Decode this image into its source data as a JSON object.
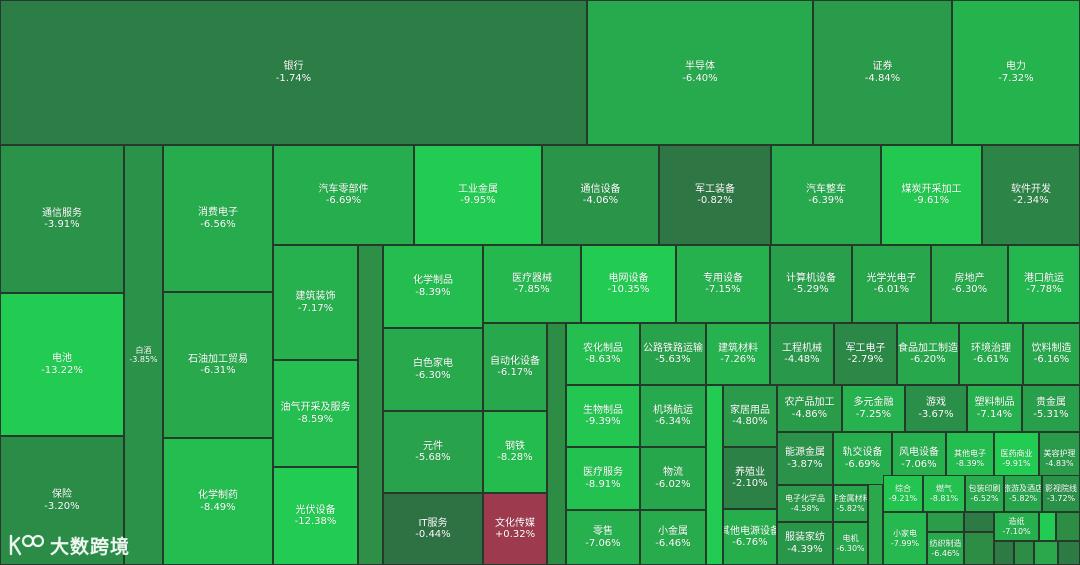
{
  "watermark": {
    "text": "大数跨境",
    "icon": "kobo-logo-icon"
  },
  "colors": {
    "deep_down": "#22cc52",
    "mid_down": "#2e9a49",
    "slight_down": "#2f6e43",
    "up": "#9e3a4e"
  },
  "chart_data": {
    "type": "heatmap",
    "subtype": "treemap",
    "value_unit": "%",
    "tiles": [
      {
        "name": "银行",
        "change": "-1.74%"
      },
      {
        "name": "半导体",
        "change": "-6.40%"
      },
      {
        "name": "证券",
        "change": "-4.84%"
      },
      {
        "name": "电力",
        "change": "-7.32%"
      },
      {
        "name": "通信服务",
        "change": "-3.91%"
      },
      {
        "name": "电池",
        "change": "-13.22%"
      },
      {
        "name": "保险",
        "change": "-3.20%"
      },
      {
        "name": "白酒",
        "change": "-3.85%"
      },
      {
        "name": "消费电子",
        "change": "-6.56%"
      },
      {
        "name": "石油加工贸易",
        "change": "-6.31%"
      },
      {
        "name": "化学制药",
        "change": "-8.49%"
      },
      {
        "name": "汽车零部件",
        "change": "-6.69%"
      },
      {
        "name": "工业金属",
        "change": "-9.95%"
      },
      {
        "name": "通信设备",
        "change": "-4.06%"
      },
      {
        "name": "军工装备",
        "change": "-0.82%"
      },
      {
        "name": "汽车整车",
        "change": "-6.39%"
      },
      {
        "name": "煤炭开采加工",
        "change": "-9.61%"
      },
      {
        "name": "软件开发",
        "change": "-2.34%"
      },
      {
        "name": "建筑装饰",
        "change": "-7.17%"
      },
      {
        "name": "油气开采及服务",
        "change": "-8.59%"
      },
      {
        "name": "光伏设备",
        "change": "-12.38%"
      },
      {
        "name": "化学制品",
        "change": "-8.39%"
      },
      {
        "name": "白色家电",
        "change": "-6.30%"
      },
      {
        "name": "元件",
        "change": "-5.68%"
      },
      {
        "name": "IT服务",
        "change": "-0.44%"
      },
      {
        "name": "医疗器械",
        "change": "-7.85%"
      },
      {
        "name": "自动化设备",
        "change": "-6.17%"
      },
      {
        "name": "钢铁",
        "change": "-8.28%"
      },
      {
        "name": "文化传媒",
        "change": "+0.32%"
      },
      {
        "name": "电网设备",
        "change": "-10.35%"
      },
      {
        "name": "专用设备",
        "change": "-7.15%"
      },
      {
        "name": "计算机设备",
        "change": "-5.29%"
      },
      {
        "name": "光学光电子",
        "change": "-6.01%"
      },
      {
        "name": "房地产",
        "change": "-6.30%"
      },
      {
        "name": "港口航运",
        "change": "-7.78%"
      },
      {
        "name": "农化制品",
        "change": "-8.63%"
      },
      {
        "name": "公路铁路运输",
        "change": "-5.63%"
      },
      {
        "name": "建筑材料",
        "change": "-7.26%"
      },
      {
        "name": "工程机械",
        "change": "-4.48%"
      },
      {
        "name": "军工电子",
        "change": "-2.79%"
      },
      {
        "name": "食品加工制造",
        "change": "-6.20%"
      },
      {
        "name": "环境治理",
        "change": "-6.61%"
      },
      {
        "name": "饮料制造",
        "change": "-6.16%"
      },
      {
        "name": "生物制品",
        "change": "-9.39%"
      },
      {
        "name": "机场航运",
        "change": "-6.34%"
      },
      {
        "name": "家居用品",
        "change": "-4.80%"
      },
      {
        "name": "农产品加工",
        "change": "-4.86%"
      },
      {
        "name": "多元金融",
        "change": "-7.25%"
      },
      {
        "name": "游戏",
        "change": "-3.67%"
      },
      {
        "name": "塑料制品",
        "change": "-7.14%"
      },
      {
        "name": "贵金属",
        "change": "-5.31%"
      },
      {
        "name": "医疗服务",
        "change": "-8.91%"
      },
      {
        "name": "物流",
        "change": "-6.02%"
      },
      {
        "name": "养殖业",
        "change": "-2.10%"
      },
      {
        "name": "能源金属",
        "change": "-3.87%"
      },
      {
        "name": "轨交设备",
        "change": "-6.69%"
      },
      {
        "name": "风电设备",
        "change": "-7.06%"
      },
      {
        "name": "其他电子",
        "change": "-8.39%"
      },
      {
        "name": "医药商业",
        "change": "-9.91%"
      },
      {
        "name": "美容护理",
        "change": "-4.83%"
      },
      {
        "name": "电子化学品",
        "change": "-4.58%"
      },
      {
        "name": "非金属材料",
        "change": "-5.82%"
      },
      {
        "name": "综合",
        "change": "-9.21%"
      },
      {
        "name": "燃气",
        "change": "-8.81%"
      },
      {
        "name": "包装印刷",
        "change": "-6.52%"
      },
      {
        "name": "旅游及酒店",
        "change": "-5.82%"
      },
      {
        "name": "影视院线",
        "change": "-3.72%"
      },
      {
        "name": "零售",
        "change": "-7.06%"
      },
      {
        "name": "小金属",
        "change": "-6.46%"
      },
      {
        "name": "其他电源设备",
        "change": "-6.76%"
      },
      {
        "name": "服装家纺",
        "change": "-4.39%"
      },
      {
        "name": "电机",
        "change": "-6.30%"
      },
      {
        "name": "小家电",
        "change": "-7.99%"
      },
      {
        "name": "造纸",
        "change": "-7.10%"
      },
      {
        "name": "纺织制造",
        "change": "-6.46%"
      }
    ]
  }
}
